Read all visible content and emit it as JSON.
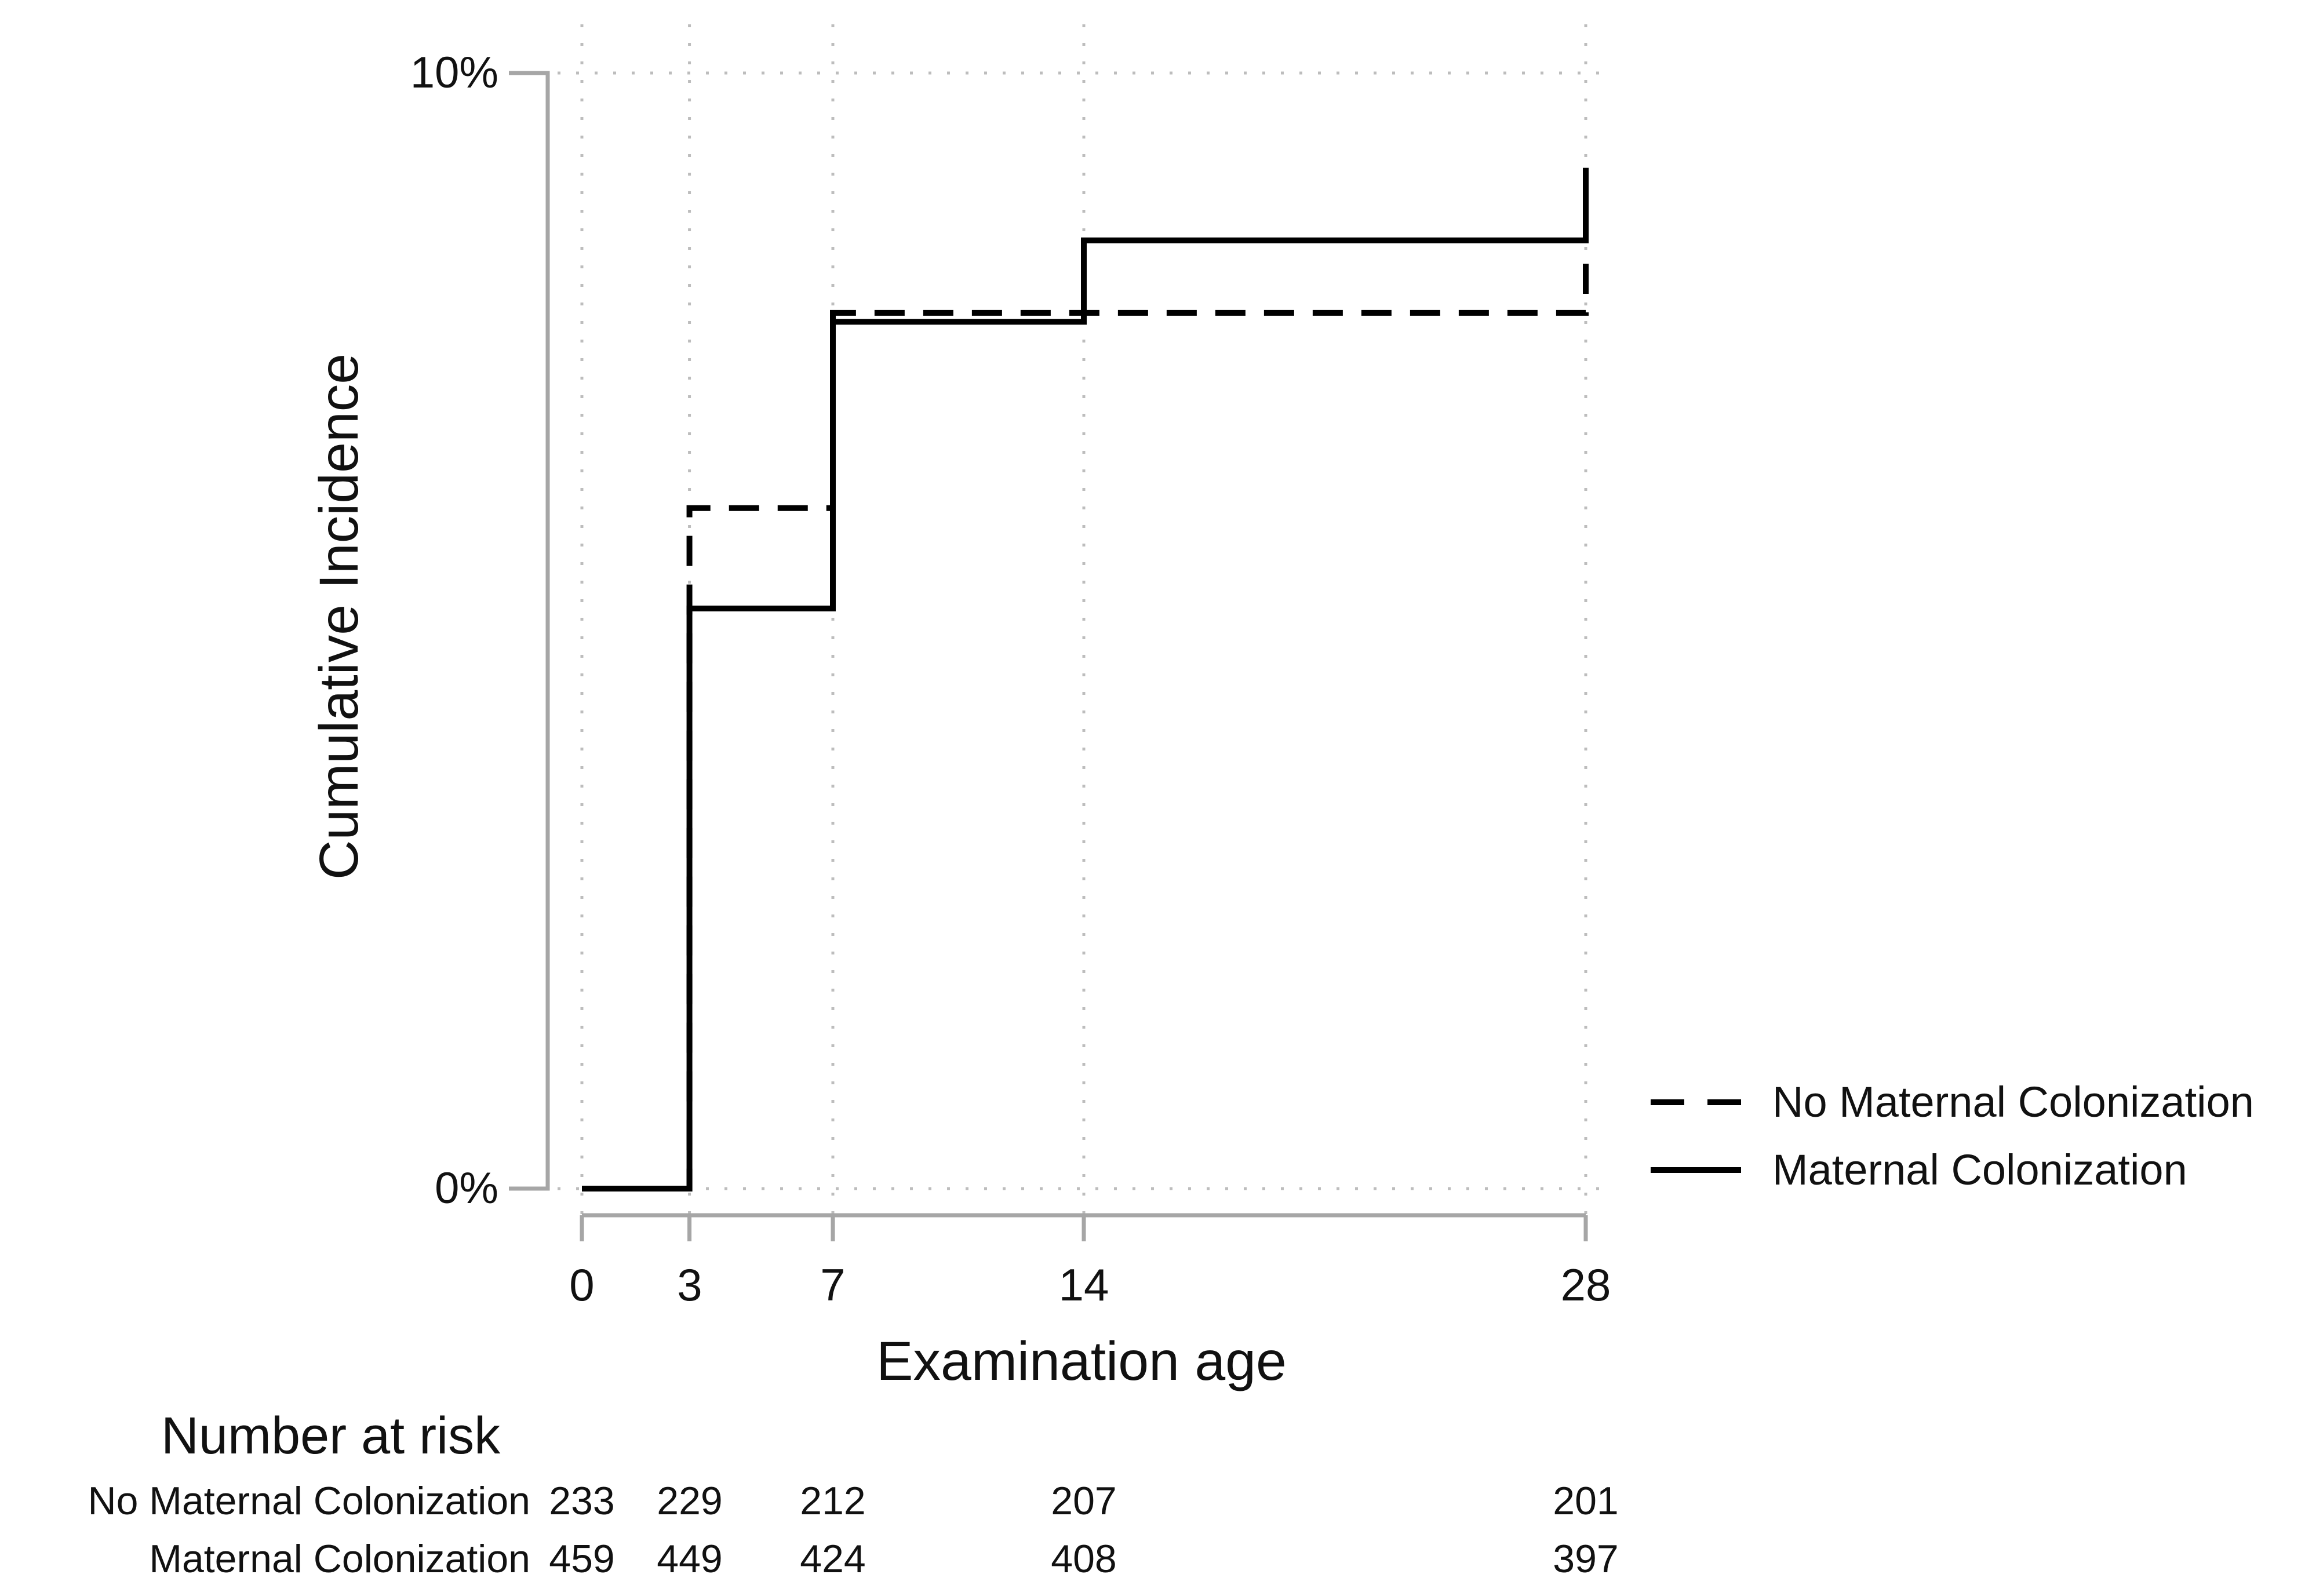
{
  "chart_data": {
    "type": "line",
    "subtype": "step-cumulative-incidence",
    "title": "",
    "xlabel": "Examination age",
    "ylabel": "Cumulative Incidence",
    "xlim": [
      0,
      28
    ],
    "ylim_percent": [
      0,
      10
    ],
    "x_ticks": [
      0,
      3,
      7,
      14,
      28
    ],
    "y_ticks": [
      {
        "value": 10,
        "label": "10%"
      },
      {
        "value": 0,
        "label": "0%"
      }
    ],
    "grid": true,
    "legend_position": "right-outside",
    "series": [
      {
        "name": "No Maternal Colonization",
        "line_style": "dashed",
        "color": "#000000",
        "step_points": [
          [
            0,
            0
          ],
          [
            3,
            0
          ],
          [
            3,
            6.1
          ],
          [
            7,
            6.1
          ],
          [
            7,
            7.85
          ],
          [
            28,
            7.85
          ],
          [
            28,
            8.3
          ]
        ]
      },
      {
        "name": "Maternal Colonization",
        "line_style": "solid",
        "color": "#000000",
        "step_points": [
          [
            0,
            0
          ],
          [
            3,
            0
          ],
          [
            3,
            5.2
          ],
          [
            7,
            5.2
          ],
          [
            7,
            7.77
          ],
          [
            14,
            7.77
          ],
          [
            14,
            8.5
          ],
          [
            28,
            8.5
          ],
          [
            28,
            9.15
          ]
        ]
      }
    ]
  },
  "risk_table": {
    "title": "Number at risk",
    "time_points": [
      0,
      3,
      7,
      14,
      28
    ],
    "rows": [
      {
        "label": "No Maternal Colonization",
        "values": [
          "233",
          "229",
          "212",
          "207",
          "201"
        ]
      },
      {
        "label": "Maternal Colonization",
        "values": [
          "459",
          "449",
          "424",
          "408",
          "397"
        ]
      }
    ]
  },
  "colors": {
    "curve": "#000000",
    "axis": "#a6a6a6",
    "grid": "#bdbdbd",
    "text": "#111111",
    "background": "#ffffff"
  }
}
